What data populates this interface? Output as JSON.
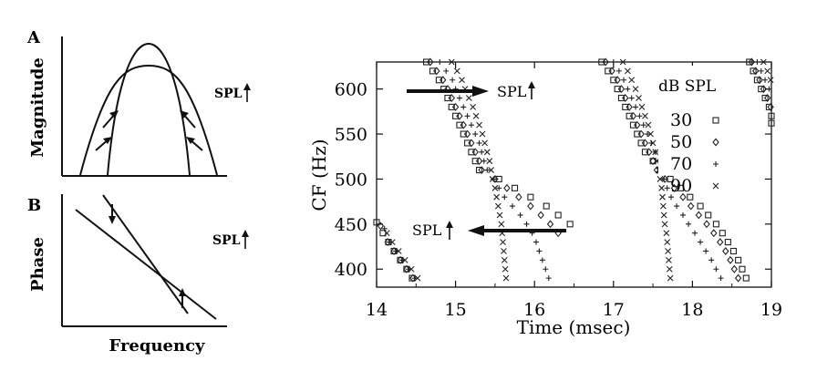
{
  "figure": {
    "panel_a": {
      "letter": "A",
      "ylabel": "Magnitude",
      "annotation": "SPL"
    },
    "panel_b": {
      "letter": "B",
      "ylabel": "Phase",
      "annotation": "SPL",
      "xlabel": "Frequency"
    }
  },
  "chart_data": {
    "type": "scatter",
    "xlabel": "Time (msec)",
    "ylabel": "CF (Hz)",
    "xlim": [
      14,
      19
    ],
    "ylim": [
      380,
      630
    ],
    "xticks": [
      "14",
      "15",
      "16",
      "17",
      "18",
      "19"
    ],
    "yticks": [
      "400",
      "450",
      "500",
      "550",
      "600"
    ],
    "legend_title": "dB SPL",
    "legend_position": "top-right",
    "annotations": [
      {
        "text": "SPL",
        "direction": "right-arrow",
        "at_x": 15.7,
        "at_y": 596
      },
      {
        "text": "SPL",
        "direction": "left-arrow",
        "at_x": 14.7,
        "at_y": 444
      }
    ],
    "series": [
      {
        "name": "30",
        "marker": "square",
        "points": [
          [
            14.63,
            630
          ],
          [
            14.71,
            620
          ],
          [
            14.79,
            610
          ],
          [
            14.85,
            600
          ],
          [
            14.9,
            590
          ],
          [
            14.95,
            580
          ],
          [
            15.0,
            570
          ],
          [
            15.05,
            560
          ],
          [
            15.1,
            550
          ],
          [
            15.15,
            540
          ],
          [
            15.2,
            530
          ],
          [
            15.25,
            520
          ],
          [
            15.3,
            510
          ],
          [
            15.55,
            500
          ],
          [
            15.75,
            490
          ],
          [
            15.95,
            480
          ],
          [
            16.15,
            470
          ],
          [
            16.3,
            460
          ],
          [
            16.45,
            450
          ],
          [
            14.0,
            452
          ],
          [
            14.08,
            440
          ],
          [
            14.15,
            430
          ],
          [
            14.22,
            420
          ],
          [
            14.3,
            410
          ],
          [
            14.38,
            400
          ],
          [
            14.45,
            390
          ],
          [
            16.85,
            630
          ],
          [
            16.93,
            620
          ],
          [
            17.0,
            610
          ],
          [
            17.05,
            600
          ],
          [
            17.1,
            590
          ],
          [
            17.15,
            580
          ],
          [
            17.2,
            570
          ],
          [
            17.25,
            560
          ],
          [
            17.3,
            550
          ],
          [
            17.35,
            540
          ],
          [
            17.4,
            530
          ],
          [
            17.5,
            520
          ],
          [
            17.6,
            510
          ],
          [
            17.72,
            500
          ],
          [
            17.85,
            490
          ],
          [
            17.97,
            480
          ],
          [
            18.1,
            470
          ],
          [
            18.2,
            460
          ],
          [
            18.3,
            450
          ],
          [
            18.38,
            440
          ],
          [
            18.45,
            430
          ],
          [
            18.52,
            420
          ],
          [
            18.58,
            410
          ],
          [
            18.63,
            400
          ],
          [
            18.68,
            390
          ],
          [
            18.72,
            630
          ],
          [
            18.77,
            620
          ],
          [
            18.82,
            610
          ],
          [
            18.87,
            600
          ],
          [
            18.92,
            590
          ],
          [
            18.97,
            580
          ],
          [
            19.0,
            570
          ],
          [
            19.0,
            562
          ]
        ]
      },
      {
        "name": "50",
        "marker": "diamond",
        "points": [
          [
            14.68,
            630
          ],
          [
            14.76,
            620
          ],
          [
            14.84,
            610
          ],
          [
            14.9,
            600
          ],
          [
            14.95,
            590
          ],
          [
            15.0,
            580
          ],
          [
            15.05,
            570
          ],
          [
            15.1,
            560
          ],
          [
            15.15,
            550
          ],
          [
            15.2,
            540
          ],
          [
            15.25,
            530
          ],
          [
            15.3,
            520
          ],
          [
            15.33,
            510
          ],
          [
            15.5,
            500
          ],
          [
            15.65,
            490
          ],
          [
            15.8,
            480
          ],
          [
            15.95,
            470
          ],
          [
            16.08,
            460
          ],
          [
            16.2,
            450
          ],
          [
            16.3,
            440
          ],
          [
            14.05,
            448
          ],
          [
            14.14,
            430
          ],
          [
            14.22,
            420
          ],
          [
            14.3,
            410
          ],
          [
            14.38,
            400
          ],
          [
            14.46,
            390
          ],
          [
            16.9,
            630
          ],
          [
            16.98,
            620
          ],
          [
            17.05,
            610
          ],
          [
            17.1,
            600
          ],
          [
            17.15,
            590
          ],
          [
            17.2,
            580
          ],
          [
            17.25,
            570
          ],
          [
            17.3,
            560
          ],
          [
            17.35,
            550
          ],
          [
            17.4,
            540
          ],
          [
            17.45,
            530
          ],
          [
            17.5,
            520
          ],
          [
            17.55,
            510
          ],
          [
            17.65,
            500
          ],
          [
            17.77,
            490
          ],
          [
            17.88,
            480
          ],
          [
            17.98,
            470
          ],
          [
            18.08,
            460
          ],
          [
            18.18,
            450
          ],
          [
            18.27,
            440
          ],
          [
            18.35,
            430
          ],
          [
            18.42,
            420
          ],
          [
            18.48,
            410
          ],
          [
            18.53,
            400
          ],
          [
            18.58,
            390
          ],
          [
            18.75,
            630
          ],
          [
            18.8,
            620
          ],
          [
            18.85,
            610
          ],
          [
            18.9,
            600
          ],
          [
            18.95,
            590
          ],
          [
            18.99,
            580
          ]
        ]
      },
      {
        "name": "70",
        "marker": "plus",
        "points": [
          [
            14.8,
            630
          ],
          [
            14.88,
            620
          ],
          [
            14.96,
            610
          ],
          [
            15.0,
            600
          ],
          [
            15.05,
            590
          ],
          [
            15.1,
            580
          ],
          [
            15.15,
            570
          ],
          [
            15.2,
            560
          ],
          [
            15.25,
            550
          ],
          [
            15.3,
            540
          ],
          [
            15.33,
            530
          ],
          [
            15.36,
            520
          ],
          [
            15.4,
            510
          ],
          [
            15.48,
            500
          ],
          [
            15.55,
            490
          ],
          [
            15.62,
            480
          ],
          [
            15.72,
            470
          ],
          [
            15.82,
            460
          ],
          [
            15.9,
            450
          ],
          [
            15.97,
            440
          ],
          [
            16.02,
            430
          ],
          [
            16.06,
            420
          ],
          [
            16.1,
            410
          ],
          [
            16.14,
            400
          ],
          [
            16.18,
            390
          ],
          [
            14.1,
            445
          ],
          [
            14.16,
            430
          ],
          [
            14.24,
            420
          ],
          [
            14.32,
            410
          ],
          [
            14.4,
            400
          ],
          [
            14.48,
            390
          ],
          [
            17.0,
            630
          ],
          [
            17.07,
            620
          ],
          [
            17.13,
            610
          ],
          [
            17.18,
            600
          ],
          [
            17.23,
            590
          ],
          [
            17.28,
            580
          ],
          [
            17.33,
            570
          ],
          [
            17.38,
            560
          ],
          [
            17.43,
            550
          ],
          [
            17.48,
            540
          ],
          [
            17.53,
            530
          ],
          [
            17.57,
            520
          ],
          [
            17.6,
            510
          ],
          [
            17.64,
            500
          ],
          [
            17.68,
            490
          ],
          [
            17.73,
            480
          ],
          [
            17.8,
            470
          ],
          [
            17.88,
            460
          ],
          [
            17.95,
            450
          ],
          [
            18.03,
            440
          ],
          [
            18.1,
            430
          ],
          [
            18.17,
            420
          ],
          [
            18.24,
            410
          ],
          [
            18.3,
            400
          ],
          [
            18.36,
            390
          ],
          [
            18.82,
            630
          ],
          [
            18.87,
            620
          ],
          [
            18.92,
            610
          ],
          [
            18.97,
            600
          ]
        ]
      },
      {
        "name": "90",
        "marker": "cross",
        "points": [
          [
            14.95,
            630
          ],
          [
            15.02,
            620
          ],
          [
            15.08,
            610
          ],
          [
            15.12,
            600
          ],
          [
            15.17,
            590
          ],
          [
            15.22,
            580
          ],
          [
            15.26,
            570
          ],
          [
            15.3,
            560
          ],
          [
            15.34,
            550
          ],
          [
            15.37,
            540
          ],
          [
            15.4,
            530
          ],
          [
            15.43,
            520
          ],
          [
            15.45,
            510
          ],
          [
            15.47,
            500
          ],
          [
            15.5,
            490
          ],
          [
            15.52,
            480
          ],
          [
            15.54,
            470
          ],
          [
            15.56,
            460
          ],
          [
            15.58,
            450
          ],
          [
            15.59,
            440
          ],
          [
            15.6,
            430
          ],
          [
            15.61,
            420
          ],
          [
            15.62,
            410
          ],
          [
            15.63,
            400
          ],
          [
            15.64,
            390
          ],
          [
            14.13,
            440
          ],
          [
            14.2,
            430
          ],
          [
            14.28,
            420
          ],
          [
            14.36,
            410
          ],
          [
            14.44,
            400
          ],
          [
            14.52,
            390
          ],
          [
            17.12,
            630
          ],
          [
            17.18,
            620
          ],
          [
            17.23,
            610
          ],
          [
            17.28,
            600
          ],
          [
            17.32,
            590
          ],
          [
            17.36,
            580
          ],
          [
            17.4,
            570
          ],
          [
            17.44,
            560
          ],
          [
            17.47,
            550
          ],
          [
            17.5,
            540
          ],
          [
            17.53,
            530
          ],
          [
            17.55,
            520
          ],
          [
            17.57,
            510
          ],
          [
            17.59,
            500
          ],
          [
            17.61,
            490
          ],
          [
            17.62,
            480
          ],
          [
            17.63,
            470
          ],
          [
            17.64,
            460
          ],
          [
            17.65,
            450
          ],
          [
            17.67,
            440
          ],
          [
            17.68,
            430
          ],
          [
            17.69,
            420
          ],
          [
            17.7,
            410
          ],
          [
            17.71,
            400
          ],
          [
            17.72,
            390
          ],
          [
            18.9,
            630
          ],
          [
            18.95,
            620
          ],
          [
            18.99,
            610
          ]
        ]
      }
    ]
  }
}
